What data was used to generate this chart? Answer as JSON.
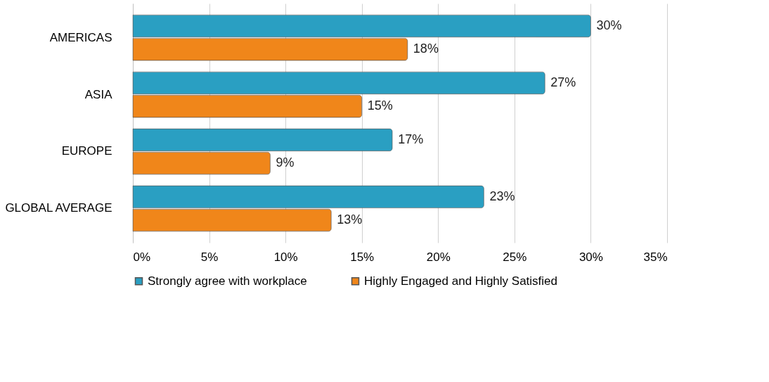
{
  "chart_data": {
    "type": "bar",
    "orientation": "horizontal",
    "categories": [
      "AMERICAS",
      "ASIA",
      "EUROPE",
      "GLOBAL AVERAGE"
    ],
    "series": [
      {
        "name": "Strongly agree with workplace",
        "color": "#2a9fc2",
        "values": [
          30,
          27,
          17,
          23
        ],
        "value_labels": [
          "30%",
          "27%",
          "17%",
          "23%"
        ]
      },
      {
        "name": "Highly Engaged and Highly Satisfied",
        "color": "#f0861a",
        "values": [
          18,
          15,
          9,
          13
        ],
        "value_labels": [
          "18%",
          "15%",
          "9%",
          "13%"
        ]
      }
    ],
    "xlim": [
      0,
      35
    ],
    "xticks": [
      {
        "value": 0,
        "label": "0%"
      },
      {
        "value": 5,
        "label": "5%"
      },
      {
        "value": 10,
        "label": "10%"
      },
      {
        "value": 15,
        "label": "15%"
      },
      {
        "value": 20,
        "label": "20%"
      },
      {
        "value": 25,
        "label": "25%"
      },
      {
        "value": 30,
        "label": "30%"
      },
      {
        "value": 35,
        "label": "35%"
      }
    ],
    "grid": "x",
    "legend": "bottom"
  }
}
